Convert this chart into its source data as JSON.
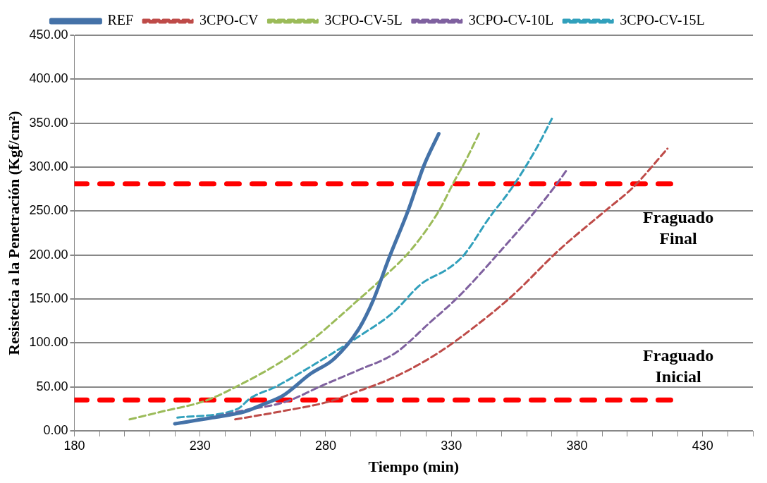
{
  "chart_data": {
    "type": "line",
    "xlabel": "Tiempo (min)",
    "ylabel": "Resistecia a la Penetración (Kgf/cm²)",
    "xlim": [
      180,
      450
    ],
    "ylim": [
      0,
      450
    ],
    "xticks": [
      180,
      {
        "value": 190,
        "label": null
      },
      {
        "value": 200,
        "label": null
      },
      {
        "value": 210,
        "label": null
      },
      {
        "value": 220,
        "label": null
      },
      230,
      {
        "value": 240,
        "label": null
      },
      {
        "value": 250,
        "label": null
      },
      {
        "value": 260,
        "label": null
      },
      {
        "value": 270,
        "label": null
      },
      280,
      {
        "value": 290,
        "label": null
      },
      {
        "value": 300,
        "label": null
      },
      {
        "value": 310,
        "label": null
      },
      {
        "value": 320,
        "label": null
      },
      330,
      {
        "value": 340,
        "label": null
      },
      {
        "value": 350,
        "label": null
      },
      {
        "value": 360,
        "label": null
      },
      {
        "value": 370,
        "label": null
      },
      380,
      {
        "value": 390,
        "label": null
      },
      {
        "value": 400,
        "label": null
      },
      {
        "value": 410,
        "label": null
      },
      {
        "value": 420,
        "label": null
      },
      430,
      {
        "value": 440,
        "label": null
      },
      {
        "value": 450,
        "label": null
      }
    ],
    "yticks": [
      {
        "value": 0,
        "label": "0.00"
      },
      {
        "value": 50,
        "label": "50.00"
      },
      {
        "value": 100,
        "label": "100.00"
      },
      {
        "value": 150,
        "label": "150.00"
      },
      {
        "value": 200,
        "label": "200.00"
      },
      {
        "value": 250,
        "label": "250.00"
      },
      {
        "value": 300,
        "label": "300.00"
      },
      {
        "value": 350,
        "label": "350.00"
      },
      {
        "value": 400,
        "label": "400.00"
      },
      {
        "value": 450,
        "label": "450.00"
      }
    ],
    "grid": "y",
    "legend": "top",
    "marker": "none",
    "series": [
      {
        "name": "REF",
        "color": "#4472a8",
        "line_style": "solid",
        "x": [
          220,
          235,
          248,
          255,
          263,
          274,
          283,
          293,
          299,
          305,
          313,
          319,
          325
        ],
        "values": [
          8,
          15,
          22,
          30,
          40,
          65,
          81,
          115,
          149,
          195,
          252,
          301,
          338
        ]
      },
      {
        "name": "3CPO-CV",
        "color": "#be4b48",
        "line_style": "dashed",
        "x": [
          244,
          264,
          281,
          292,
          308,
          325,
          340,
          354,
          373,
          392,
          402,
          416
        ],
        "values": [
          13,
          23,
          33,
          44,
          62,
          89,
          120,
          153,
          206,
          252,
          276,
          321
        ]
      },
      {
        "name": "3CPO-CV-5L",
        "color": "#9bbb59",
        "line_style": "dashed",
        "x": [
          202,
          215,
          232,
          247,
          262,
          274,
          293,
          302,
          314,
          325,
          331,
          336,
          341
        ],
        "values": [
          13,
          22,
          34,
          54,
          78,
          102,
          149,
          172,
          206,
          250,
          283,
          309,
          338
        ]
      },
      {
        "name": "3CPO-CV-10L",
        "color": "#7f619f",
        "line_style": "dashed",
        "x": [
          229,
          247,
          264,
          279,
          293,
          308,
          321,
          333,
          350,
          364,
          372,
          376
        ],
        "values": [
          12,
          23,
          33,
          52,
          69,
          89,
          122,
          153,
          206,
          252,
          281,
          297
        ]
      },
      {
        "name": "3CPO-CV-15L",
        "color": "#31a0bc",
        "line_style": "dashed",
        "x": [
          221,
          245,
          250,
          260,
          274,
          293,
          307,
          318,
          329,
          335,
          345,
          354,
          364,
          370
        ],
        "values": [
          15,
          25,
          37,
          50,
          73,
          107,
          135,
          167,
          185,
          200,
          242,
          276,
          322,
          355
        ]
      },
      {
        "color": "#ff0000",
        "line_style": "dashed",
        "x": [
          180,
          420
        ],
        "values": [
          35,
          35
        ]
      },
      {
        "color": "#ff0000",
        "line_style": "dashed",
        "x": [
          180,
          420
        ],
        "values": [
          281,
          281
        ]
      }
    ],
    "annotations": [
      "Fraguado Final",
      "Fraguado Inicial"
    ]
  }
}
